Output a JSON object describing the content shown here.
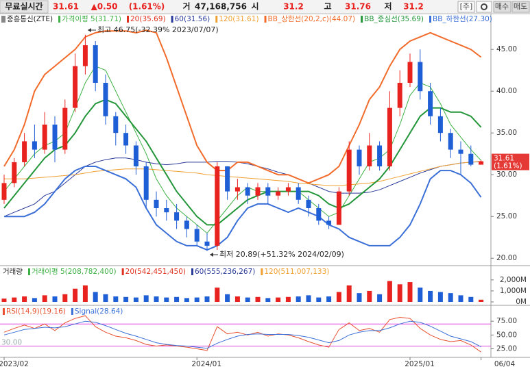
{
  "header": {
    "mode": "무료실시간",
    "price": "31.61",
    "change": "▲0.50",
    "rate": "(1.61%)",
    "volume_label": "거",
    "volume": "47,168,756",
    "open_label": "시",
    "open": "31.2",
    "high_label": "고",
    "high": "31.76",
    "low_label": "저",
    "low": "31.2",
    "buttons": [
      "[주]",
      "매수",
      "매도"
    ]
  },
  "chart_data": [
    {
      "type": "candlestick",
      "title": "중흥통신(ZTE)",
      "up_color": "#e8231f",
      "down_color": "#1f5fd6",
      "open": [
        27,
        29,
        31.5,
        34,
        33,
        36,
        33,
        38,
        43,
        45.5,
        41,
        37,
        35,
        33.5,
        31,
        27,
        26,
        25.5,
        24.5,
        23.5,
        22,
        21.5,
        31,
        28,
        28.5,
        27.5,
        28.5,
        27.5,
        28,
        28.5,
        27,
        26,
        24.5,
        24,
        28,
        33,
        31,
        33.5,
        31,
        38,
        41,
        43.5,
        40,
        37,
        35,
        33,
        32.5,
        31.2
      ],
      "high": [
        30,
        32,
        35,
        36,
        37.5,
        37,
        39,
        44.5,
        46.75,
        46,
        42,
        37.5,
        36,
        34,
        31.5,
        28,
        27,
        26.5,
        25,
        24,
        23,
        31.5,
        31,
        29.5,
        29,
        29,
        29,
        28.5,
        29,
        29,
        27.5,
        26.5,
        25,
        28.5,
        34,
        33.5,
        35,
        34,
        40,
        42.5,
        44.5,
        45,
        41,
        38,
        35.5,
        34,
        33.5,
        31.76
      ],
      "low": [
        26.5,
        28.5,
        31,
        32,
        32.5,
        31.5,
        32.5,
        37.5,
        42,
        40,
        36,
        33.5,
        32.5,
        30,
        26,
        25,
        24.5,
        23.5,
        22.5,
        21.5,
        20.89,
        21,
        27,
        27,
        26.5,
        27,
        26.5,
        27,
        27.5,
        26.5,
        25,
        24,
        23.5,
        24,
        27.5,
        30,
        30.5,
        30.5,
        30.5,
        37,
        40.5,
        39,
        36,
        34,
        32,
        30,
        31,
        31.2
      ],
      "close": [
        29,
        31.5,
        34,
        33,
        36,
        33,
        38,
        43,
        45.5,
        41,
        37,
        35,
        33.5,
        31,
        27,
        26,
        25.5,
        24.5,
        23.5,
        22,
        21.5,
        31,
        28,
        28.5,
        27.5,
        28.5,
        27.5,
        28,
        28.5,
        27,
        26,
        24.5,
        24,
        28,
        33,
        31,
        33.5,
        31,
        38,
        41,
        43.5,
        40,
        37,
        35,
        33,
        32.5,
        31.2,
        31.61
      ],
      "series": [
        {
          "name": "가격이평 5(31.71)",
          "color": "#3cb043",
          "width": 1,
          "values": [
            28,
            29.5,
            31,
            32.5,
            33.5,
            34,
            35,
            38,
            41,
            43,
            42.5,
            40,
            37.5,
            35,
            32.5,
            29.5,
            27.5,
            26,
            25,
            24,
            23,
            24.5,
            26,
            27.5,
            28.5,
            28,
            28,
            28,
            28,
            28,
            27,
            26,
            25,
            25.5,
            27.5,
            29.5,
            31.5,
            32,
            33,
            36,
            39.5,
            41,
            40.5,
            38.5,
            36,
            34.5,
            33,
            31.71
          ]
        },
        {
          "name": "20(35.69)",
          "color": "#e0301e",
          "width": 1,
          "values": [
            26,
            27.5,
            29,
            30.5,
            32,
            33,
            33.5,
            35,
            37,
            38.5,
            39,
            38.5,
            37,
            35.5,
            34,
            32,
            30,
            28,
            26.5,
            25,
            24,
            24,
            25,
            26,
            27,
            27.5,
            28,
            28,
            28,
            28,
            28,
            27.5,
            26.5,
            26,
            26.5,
            27.5,
            28.5,
            29.5,
            31,
            33,
            35,
            37,
            38,
            38,
            37.5,
            37.5,
            37,
            35.69
          ]
        },
        {
          "name": "60(31.56)",
          "color": "#2a3a9a",
          "width": 1,
          "values": [
            25,
            25.5,
            26,
            26.5,
            27.5,
            28,
            29,
            30,
            31,
            31.5,
            31.8,
            32,
            32,
            31.8,
            31.5,
            31.3,
            31.2,
            31.3,
            31.5,
            31.5,
            31.5,
            31.6,
            31.6,
            31.5,
            31.3,
            31,
            30.7,
            30.3,
            30,
            29.5,
            29,
            28.5,
            28,
            27.8,
            27.8,
            27.8,
            27.9,
            28.2,
            28.7,
            29.2,
            29.7,
            30.2,
            30.6,
            31,
            31.2,
            31.4,
            31.5,
            31.56
          ]
        },
        {
          "name": "120(31.61)",
          "color": "#f0a030",
          "width": 1,
          "values": [
            29.5,
            29.5,
            29.5,
            29.6,
            29.7,
            29.8,
            29.9,
            30,
            30.2,
            30.4,
            30.5,
            30.6,
            30.7,
            30.7,
            30.7,
            30.6,
            30.5,
            30.4,
            30.3,
            30.2,
            30,
            29.9,
            29.8,
            29.7,
            29.6,
            29.5,
            29.4,
            29.3,
            29.2,
            29,
            28.9,
            28.8,
            28.7,
            28.7,
            28.8,
            28.9,
            29,
            29.2,
            29.5,
            29.8,
            30.1,
            30.4,
            30.7,
            31,
            31.2,
            31.4,
            31.5,
            31.61
          ]
        },
        {
          "name": "BB_상한선(20,2,c)(44.07)",
          "color": "#f26b2a",
          "width": 2,
          "values": [
            31,
            33,
            36,
            40,
            42,
            43,
            44,
            45,
            46.5,
            47,
            47.2,
            47.2,
            47.2,
            47,
            47.3,
            47,
            44,
            40.5,
            37,
            33.5,
            31.5,
            30.5,
            30.5,
            31.5,
            31.5,
            31,
            30.5,
            30,
            30,
            29.5,
            29,
            29.5,
            30,
            31,
            33.5,
            36,
            39,
            40.5,
            43,
            45,
            46,
            46.5,
            47,
            46.5,
            46,
            45.5,
            45,
            44.07
          ]
        },
        {
          "name": "BB_중심선(35.69)",
          "color": "#23963a",
          "width": 2,
          "values": [
            26,
            27.5,
            29,
            30.5,
            32,
            33,
            33.5,
            35,
            37,
            38.5,
            39,
            38.5,
            37,
            35.5,
            34,
            32,
            30,
            28,
            26.5,
            25,
            24,
            24,
            25,
            26,
            27,
            27.5,
            28,
            28,
            28,
            28,
            28,
            27.5,
            26.5,
            26,
            26.5,
            27.5,
            28.5,
            29.5,
            31,
            33,
            35,
            37,
            38,
            38,
            37.5,
            37.5,
            37,
            35.69
          ]
        },
        {
          "name": "BB_하한선(27.30)",
          "color": "#3a6fd8",
          "width": 2,
          "values": [
            25,
            25,
            25,
            25.5,
            26.5,
            28,
            29.5,
            30.5,
            31,
            31,
            30.5,
            30,
            29.5,
            28.5,
            26,
            24,
            23,
            22,
            21.5,
            21.5,
            21,
            21.5,
            22.5,
            24.5,
            26,
            26.5,
            26.5,
            26,
            25.5,
            26,
            25.5,
            25,
            24,
            23.5,
            22.5,
            22,
            21.5,
            21.5,
            21.5,
            22.5,
            24,
            26.5,
            29.5,
            30.5,
            30.5,
            30,
            29,
            27.3
          ]
        }
      ],
      "annotations": [
        "최고 46.75(-32.39% 2023/07/07)",
        "최저 20.89(+51.32% 2024/02/09)"
      ],
      "last_label": {
        "price": "31.61",
        "rate": "(1.61%)",
        "color": "#e53935"
      },
      "ylim": [
        19.2,
        47.8
      ],
      "yticks": [
        {
          "value": 20,
          "label": "20.00"
        },
        {
          "value": 25,
          "label": "25.00"
        },
        {
          "value": 30,
          "label": "30.00"
        },
        {
          "value": 35,
          "label": "35.00"
        },
        {
          "value": 40,
          "label": "40.00"
        },
        {
          "value": 45,
          "label": "45.00"
        }
      ]
    },
    {
      "type": "bar",
      "title": "거래량",
      "legend": [
        {
          "name": "거래이평 5(208,782,400)",
          "color": "#3cb043"
        },
        {
          "name": "20(542,451,450)",
          "color": "#e0301e"
        },
        {
          "name": "60(555,236,267)",
          "color": "#2a3a9a"
        },
        {
          "name": "120(511,007,133)",
          "color": "#f0a030"
        }
      ],
      "values": [
        300,
        400,
        500,
        350,
        600,
        500,
        700,
        1200,
        1500,
        900,
        700,
        500,
        450,
        400,
        600,
        500,
        400,
        450,
        350,
        400,
        500,
        1300,
        700,
        500,
        400,
        450,
        350,
        400,
        450,
        500,
        600,
        400,
        500,
        900,
        1500,
        800,
        1000,
        700,
        1900,
        1600,
        1800,
        1300,
        1000,
        900,
        800,
        600,
        450,
        200
      ],
      "ylim": [
        0,
        2800
      ],
      "yticks": [
        {
          "value": 0,
          "label": "0M"
        },
        {
          "value": 1000,
          "label": "1,000M"
        },
        {
          "value": 2000,
          "label": "2,000M"
        }
      ]
    },
    {
      "type": "line",
      "categories": [
        "2023/02",
        null,
        null,
        null,
        null,
        null,
        null,
        null,
        null,
        null,
        null,
        null,
        null,
        null,
        null,
        null,
        null,
        null,
        null,
        "2024/01",
        null,
        null,
        null,
        null,
        null,
        null,
        null,
        null,
        null,
        null,
        null,
        null,
        null,
        null,
        null,
        null,
        null,
        null,
        null,
        null,
        "2025/01",
        null,
        null,
        null,
        null,
        null,
        null,
        "06/04"
      ],
      "series": [
        {
          "name": "RSI(14,9)(19.16)",
          "color": "#e8502f",
          "values": [
            55,
            62,
            68,
            62,
            70,
            58,
            72,
            80,
            85,
            65,
            55,
            48,
            45,
            40,
            33,
            30,
            32,
            30,
            28,
            25,
            22,
            65,
            52,
            55,
            50,
            55,
            48,
            52,
            50,
            45,
            38,
            32,
            28,
            60,
            72,
            58,
            62,
            55,
            78,
            82,
            80,
            62,
            50,
            42,
            38,
            40,
            32,
            19.16
          ]
        },
        {
          "name": "Signal(28.64)",
          "color": "#3a6fd8",
          "values": [
            50,
            55,
            60,
            62,
            64,
            63,
            65,
            70,
            75,
            73,
            67,
            60,
            53,
            48,
            42,
            36,
            33,
            31,
            30,
            28,
            26,
            35,
            42,
            48,
            51,
            52,
            51,
            51,
            51,
            49,
            46,
            41,
            36,
            40,
            50,
            55,
            58,
            58,
            63,
            70,
            75,
            73,
            66,
            57,
            48,
            43,
            38,
            28.64
          ]
        }
      ],
      "levels": [
        70,
        {
          "value": 30,
          "label": "30.00"
        }
      ],
      "level_color": "#e040e0",
      "ylim": [
        12,
        100
      ],
      "yticks": [
        {
          "value": 25,
          "label": "25.00"
        },
        {
          "value": 50,
          "label": "50.00"
        },
        {
          "value": 75,
          "label": "75.00"
        }
      ]
    }
  ]
}
